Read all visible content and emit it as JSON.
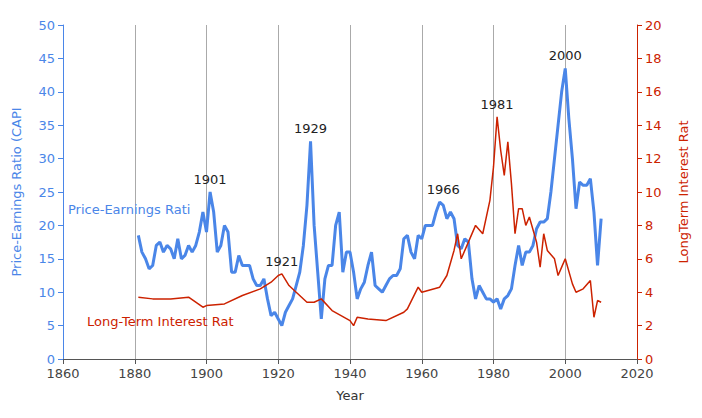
{
  "chart_data": {
    "type": "line",
    "xlabel": "Year",
    "xlim": [
      1860,
      2020
    ],
    "xticks": [
      1860,
      1880,
      1900,
      1920,
      1940,
      1960,
      1980,
      2000,
      2020
    ],
    "ylabel": "Price-Earnings Ratio (CAPI",
    "ylim": [
      0,
      50
    ],
    "yticks": [
      0,
      5,
      10,
      15,
      20,
      25,
      30,
      35,
      40,
      45,
      50
    ],
    "y2label": "LongTerm Interest Rat",
    "y2lim": [
      0,
      20
    ],
    "y2ticks": [
      0,
      2,
      4,
      6,
      8,
      10,
      12,
      14,
      16,
      18,
      20
    ],
    "grid": true,
    "series": [
      {
        "name": "Price-Earnings Rati",
        "color": "#4a86e8",
        "axis": "y",
        "x": [
          1881,
          1882,
          1883,
          1884,
          1885,
          1886,
          1887,
          1888,
          1889,
          1890,
          1891,
          1892,
          1893,
          1894,
          1895,
          1896,
          1897,
          1898,
          1899,
          1900,
          1901,
          1902,
          1903,
          1904,
          1905,
          1906,
          1907,
          1908,
          1909,
          1910,
          1911,
          1912,
          1913,
          1914,
          1915,
          1916,
          1917,
          1918,
          1919,
          1920,
          1921,
          1922,
          1923,
          1924,
          1925,
          1926,
          1927,
          1928,
          1929,
          1930,
          1931,
          1932,
          1933,
          1934,
          1935,
          1936,
          1937,
          1938,
          1939,
          1940,
          1941,
          1942,
          1943,
          1944,
          1945,
          1946,
          1947,
          1948,
          1949,
          1950,
          1951,
          1952,
          1953,
          1954,
          1955,
          1956,
          1957,
          1958,
          1959,
          1960,
          1961,
          1962,
          1963,
          1964,
          1965,
          1966,
          1967,
          1968,
          1969,
          1970,
          1971,
          1972,
          1973,
          1974,
          1975,
          1976,
          1977,
          1978,
          1979,
          1980,
          1981,
          1982,
          1983,
          1984,
          1985,
          1986,
          1987,
          1988,
          1989,
          1990,
          1991,
          1992,
          1993,
          1994,
          1995,
          1996,
          1997,
          1998,
          1999,
          2000,
          2001,
          2002,
          2003,
          2004,
          2005,
          2006,
          2007,
          2008,
          2009,
          2010
        ],
        "values": [
          18.5,
          16,
          15,
          13.5,
          14,
          17,
          17.5,
          16,
          17,
          16.5,
          15,
          18,
          15,
          15.5,
          17,
          16,
          17,
          19,
          22,
          19,
          25,
          22,
          16,
          17,
          20,
          19,
          13,
          13,
          15.5,
          14,
          14,
          14,
          12,
          11,
          11,
          12,
          9,
          6.5,
          7,
          6,
          5,
          7,
          8,
          9,
          11,
          13,
          17,
          23,
          32.6,
          20,
          13,
          6,
          12,
          14,
          14,
          20,
          22,
          13,
          16,
          16,
          13,
          9,
          10.5,
          11.5,
          14,
          16,
          11,
          10.5,
          10,
          11,
          12,
          12.5,
          12.5,
          13.5,
          18,
          18.5,
          16,
          15,
          18.5,
          18,
          20,
          20,
          20,
          22,
          23.5,
          23,
          21,
          22,
          21,
          17,
          16.5,
          18,
          17.5,
          12,
          9,
          11,
          10,
          9,
          9,
          8.5,
          9,
          7.5,
          9,
          9.5,
          10.5,
          14,
          17,
          14,
          16,
          16,
          17,
          19.5,
          20.5,
          20.5,
          21,
          25,
          30,
          35,
          40,
          43.5,
          36,
          30,
          22.5,
          26.5,
          26,
          26,
          27,
          22,
          14,
          21
        ]
      },
      {
        "name": "Long-Term Interest Rat",
        "color": "#cc2200",
        "axis": "y2",
        "x": [
          1881,
          1885,
          1890,
          1895,
          1899,
          1900,
          1905,
          1910,
          1915,
          1918,
          1920,
          1921,
          1923,
          1925,
          1928,
          1930,
          1932,
          1935,
          1940,
          1941,
          1942,
          1945,
          1950,
          1955,
          1956,
          1959,
          1960,
          1965,
          1967,
          1969,
          1970,
          1971,
          1973,
          1975,
          1977,
          1979,
          1980,
          1981,
          1982,
          1983,
          1984,
          1985,
          1986,
          1987,
          1988,
          1989,
          1990,
          1992,
          1993,
          1994,
          1995,
          1997,
          1998,
          1999,
          2000,
          2002,
          2003,
          2005,
          2007,
          2008,
          2009,
          2010
        ],
        "values": [
          3.7,
          3.6,
          3.6,
          3.7,
          3.1,
          3.2,
          3.3,
          3.8,
          4.2,
          4.6,
          5.0,
          5.1,
          4.4,
          4.0,
          3.4,
          3.4,
          3.6,
          2.9,
          2.3,
          2.0,
          2.5,
          2.4,
          2.3,
          2.8,
          3.0,
          4.3,
          4.0,
          4.3,
          5.0,
          6.5,
          7.5,
          6.0,
          7.0,
          8.0,
          7.5,
          9.5,
          11.5,
          14.5,
          12.5,
          11,
          13,
          10.5,
          7.5,
          9,
          9,
          8,
          8.5,
          7,
          5.5,
          7.5,
          6.5,
          6,
          5,
          5.5,
          6,
          4.5,
          4,
          4.2,
          4.7,
          2.5,
          3.5,
          3.4
        ]
      }
    ],
    "annotations": [
      {
        "text": "1901",
        "x": 1901,
        "y": 25,
        "axis": "y"
      },
      {
        "text": "1921",
        "x": 1921,
        "y": 5.1,
        "axis": "y2"
      },
      {
        "text": "1929",
        "x": 1929,
        "y": 32.6,
        "axis": "y"
      },
      {
        "text": "1966",
        "x": 1966,
        "y": 23.5,
        "axis": "y"
      },
      {
        "text": "1981",
        "x": 1981,
        "y": 14.5,
        "axis": "y2"
      },
      {
        "text": "2000",
        "x": 2000,
        "y": 43.5,
        "axis": "y"
      }
    ]
  }
}
